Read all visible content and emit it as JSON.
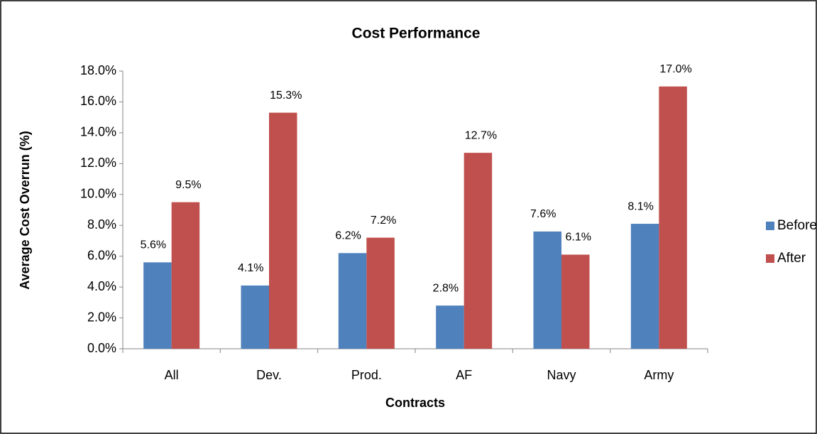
{
  "chart_data": {
    "type": "bar",
    "title": "Cost Performance",
    "x_label": "Contracts",
    "y_label": "Average Cost Overrun (%)",
    "categories": [
      "All",
      "Dev.",
      "Prod.",
      "AF",
      "Navy",
      "Army"
    ],
    "series": [
      {
        "name": "Before",
        "color": "#4f81bd",
        "values": [
          5.6,
          4.1,
          6.2,
          2.8,
          7.6,
          8.1
        ],
        "value_labels": [
          "5.6%",
          "4.1%",
          "6.2%",
          "2.8%",
          "7.6%",
          "8.1%"
        ]
      },
      {
        "name": "After",
        "color": "#c0504d",
        "values": [
          9.5,
          15.3,
          7.2,
          12.7,
          6.1,
          17.0
        ],
        "value_labels": [
          "9.5%",
          "15.3%",
          "7.2%",
          "12.7%",
          "6.1%",
          "17.0%"
        ]
      }
    ],
    "ylim": [
      0,
      18
    ],
    "yticks": [
      {
        "value": 0,
        "label": "0.0%"
      },
      {
        "value": 2,
        "label": "2.0%"
      },
      {
        "value": 4,
        "label": "4.0%"
      },
      {
        "value": 6,
        "label": "6.0%"
      },
      {
        "value": 8,
        "label": "8.0%"
      },
      {
        "value": 10,
        "label": "10.0%"
      },
      {
        "value": 12,
        "label": "12.0%"
      },
      {
        "value": 14,
        "label": "14.0%"
      },
      {
        "value": 16,
        "label": "16.0%"
      },
      {
        "value": 18,
        "label": "18.0%"
      }
    ],
    "grid": false,
    "legend": "right"
  }
}
